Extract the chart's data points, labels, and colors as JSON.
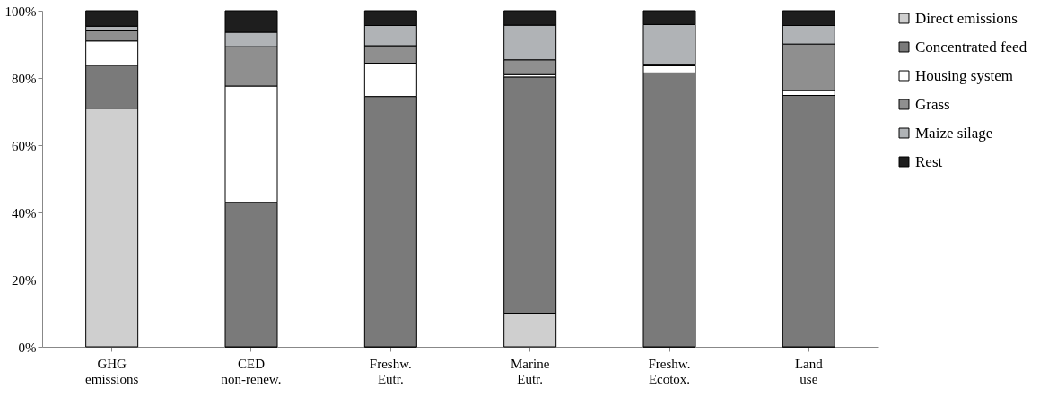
{
  "chart_data": {
    "type": "bar",
    "stacked": true,
    "categories": [
      "GHG\nemissions",
      "CED\nnon-renew.",
      "Freshw.\nEutr.",
      "Marine\nEutr.",
      "Freshw.\nEcotox.",
      "Land\nuse"
    ],
    "series": [
      {
        "name": "Direct emissions",
        "color": "#cfcfcf",
        "values": [
          71,
          0,
          0,
          10,
          0,
          0
        ]
      },
      {
        "name": "Concentrated feed",
        "color": "#7a7a7a",
        "values": [
          12.8,
          43,
          74.5,
          70.3,
          81.5,
          74.8
        ]
      },
      {
        "name": "Housing system",
        "color": "#ffffff",
        "values": [
          7.2,
          34.6,
          9.9,
          0.7,
          2.1,
          1.5
        ]
      },
      {
        "name": "Grass",
        "color": "#8f8f8f",
        "values": [
          3,
          11.7,
          5.2,
          4.4,
          0.5,
          13.8
        ]
      },
      {
        "name": "Maize silage",
        "color": "#b0b3b6",
        "values": [
          1.4,
          4.3,
          6,
          10.3,
          11.8,
          5.5
        ]
      },
      {
        "name": "Rest",
        "color": "#1e1e1e",
        "values": [
          4.6,
          6.4,
          4.4,
          4.3,
          4.1,
          4.4
        ]
      }
    ],
    "ylim": [
      0,
      100
    ],
    "yticks": [
      {
        "value": 0,
        "label": "0%"
      },
      {
        "value": 20,
        "label": "20%"
      },
      {
        "value": 40,
        "label": "40%"
      },
      {
        "value": 60,
        "label": "60%"
      },
      {
        "value": 80,
        "label": "80%"
      },
      {
        "value": 100,
        "label": "100%"
      }
    ],
    "grid": false,
    "legend": "right"
  }
}
